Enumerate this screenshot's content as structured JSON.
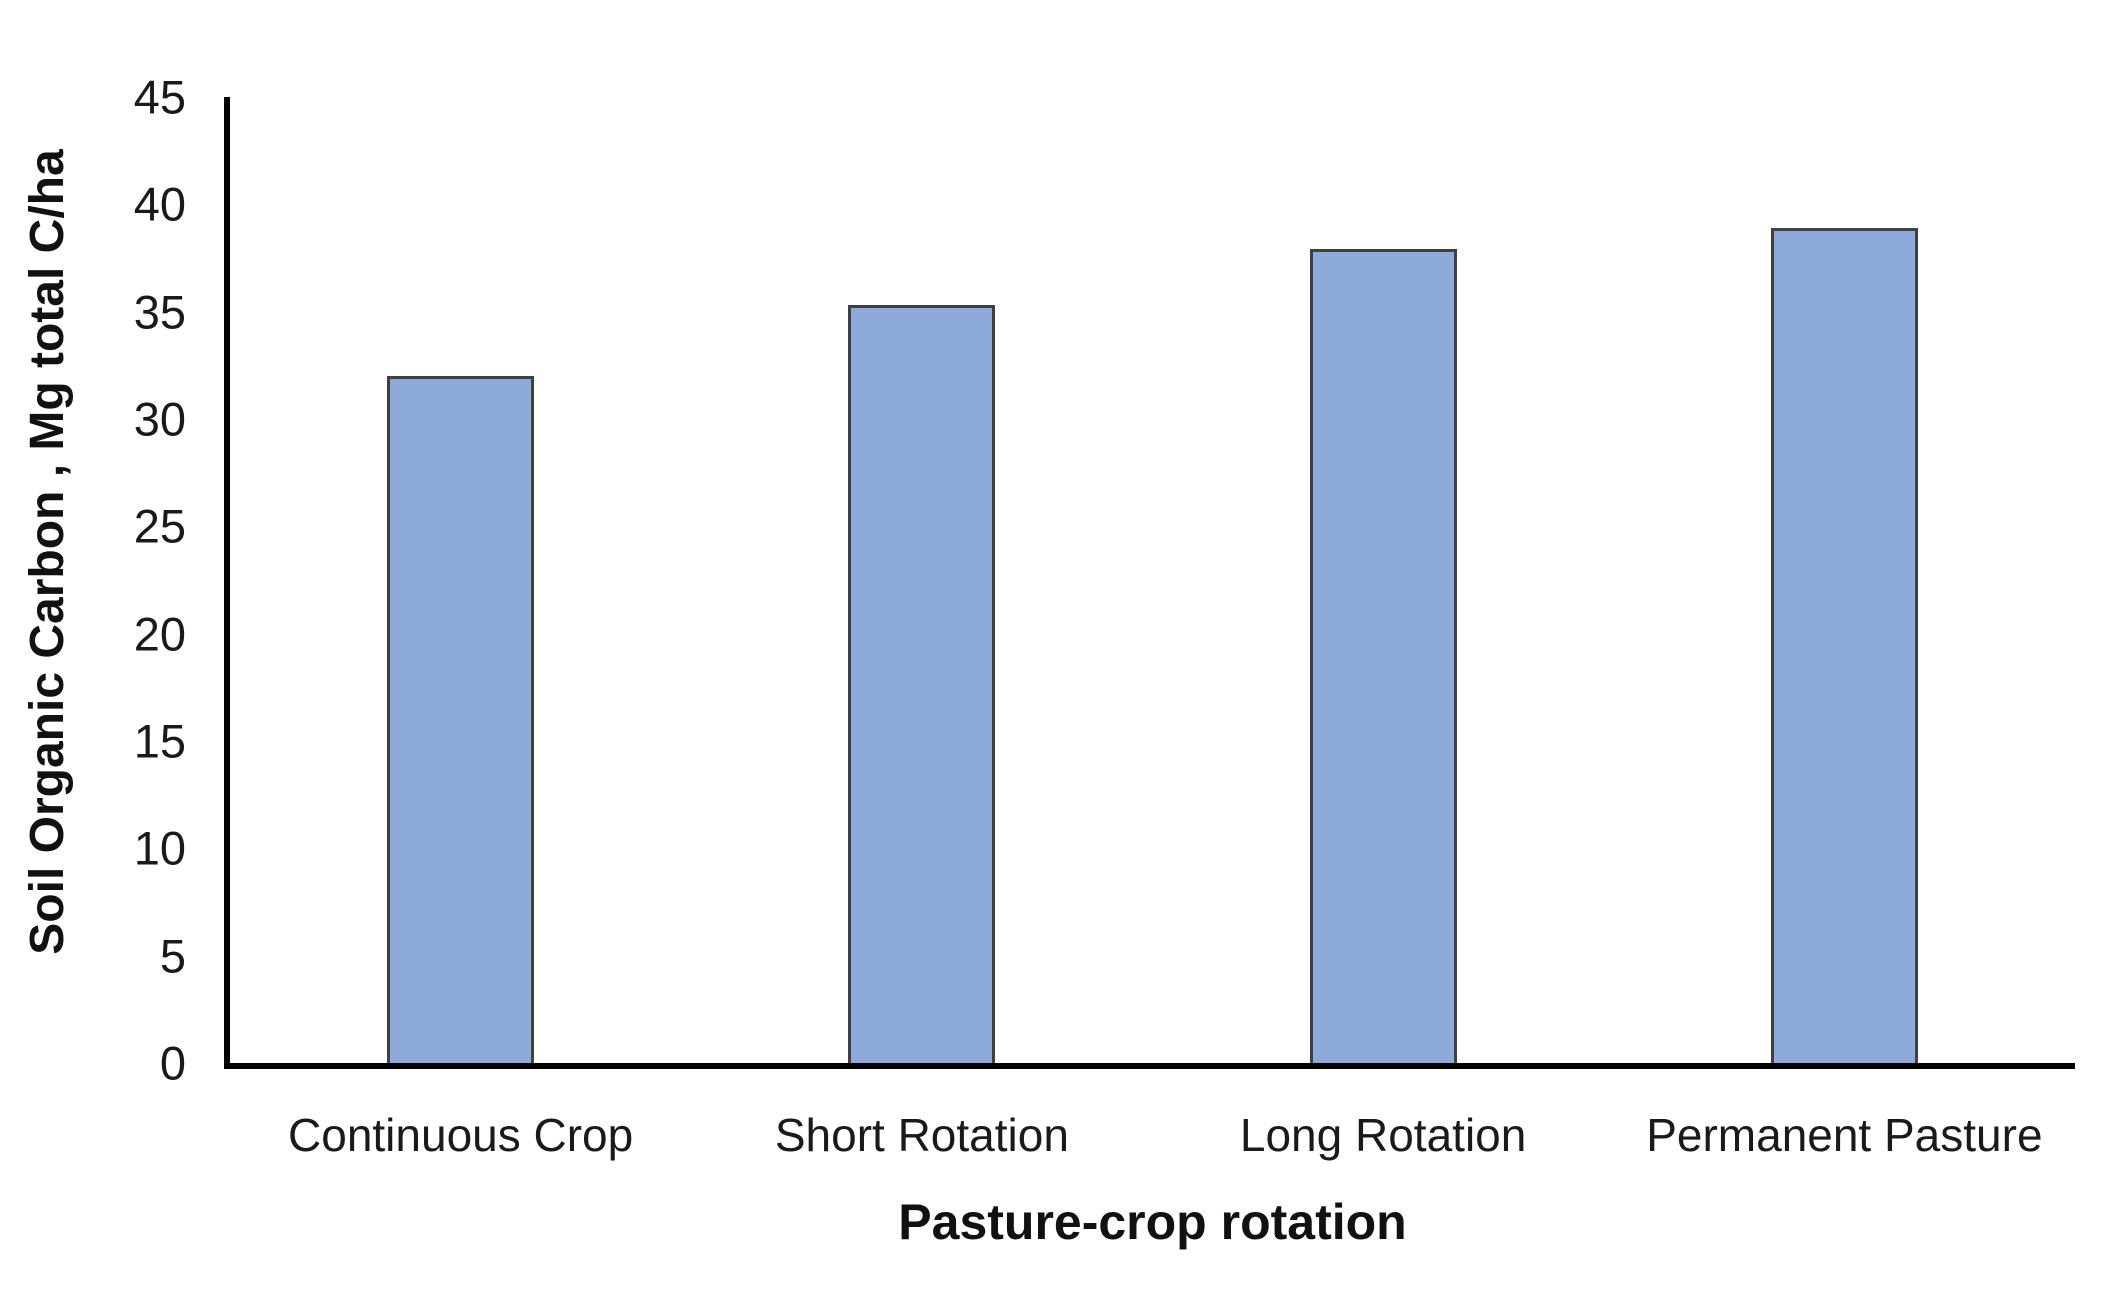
{
  "chart_data": {
    "type": "bar",
    "title": "",
    "categories": [
      "Continuous Crop",
      "Short Rotation",
      "Long Rotation",
      "Permanent Pasture"
    ],
    "values": [
      32,
      35.3,
      37.9,
      38.9
    ],
    "xlabel": "Pasture-crop rotation",
    "ylabel": "Soil Organic Carbon , Mg total C/ha",
    "ylim": [
      0,
      45
    ],
    "yticks": [
      0,
      5,
      10,
      15,
      20,
      25,
      30,
      35,
      40,
      45
    ],
    "grid": false,
    "legend": false,
    "colors": {
      "bar_fill": "#8EAADB",
      "bar_border": "#404040",
      "axis_line": "#000000",
      "text": "#1a1a1a",
      "background": "#ffffff"
    }
  }
}
